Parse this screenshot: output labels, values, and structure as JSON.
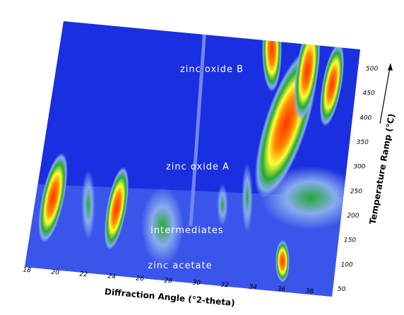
{
  "annotations": [
    "zinc oxide B",
    "zinc oxide A",
    "intermediates",
    "zinc acetate"
  ],
  "x_axis": {
    "label": "Diffraction Angle (°2-theta)",
    "ticks": [
      "18",
      "20",
      "22",
      "24",
      "26",
      "28",
      "30",
      "32",
      "34",
      "36",
      "38"
    ]
  },
  "y_axis": {
    "label": "Temperature Ramp (°C)",
    "ticks": [
      "50",
      "100",
      "150",
      "200",
      "250",
      "300",
      "350",
      "400",
      "450",
      "500"
    ]
  }
}
